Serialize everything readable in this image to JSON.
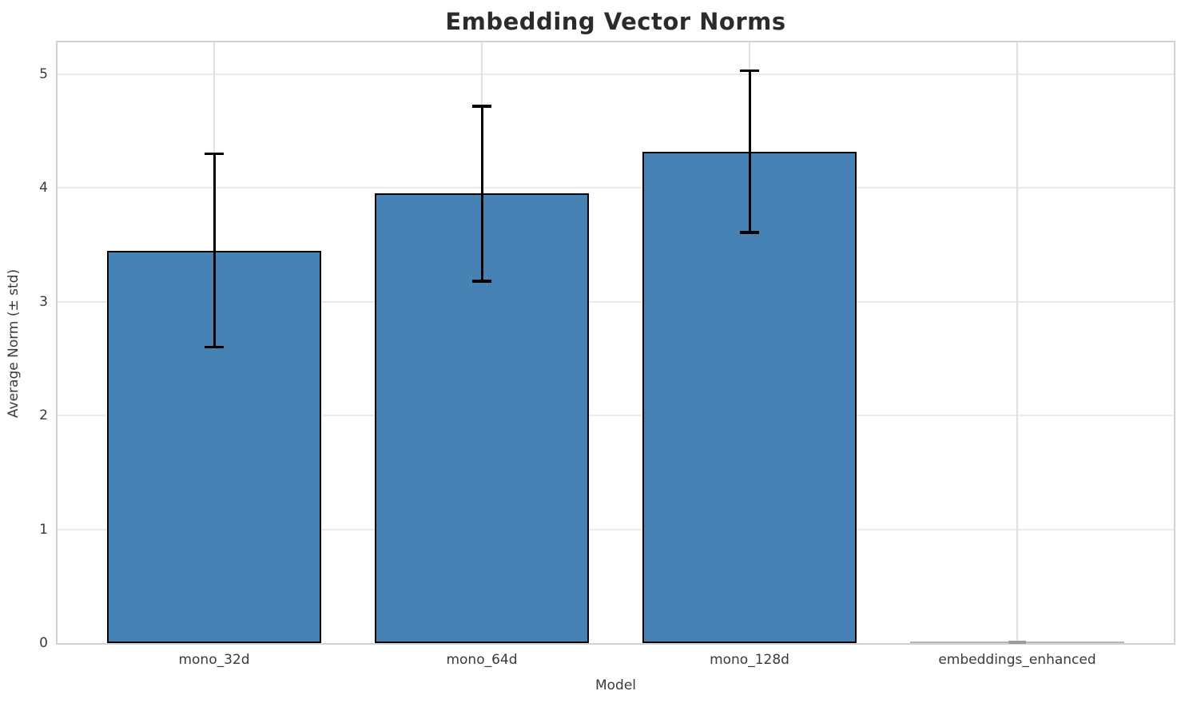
{
  "chart_data": {
    "type": "bar",
    "title": "Embedding Vector Norms",
    "xlabel": "Model",
    "ylabel": "Average Norm (± std)",
    "categories": [
      "mono_32d",
      "mono_64d",
      "mono_128d",
      "embeddings_enhanced"
    ],
    "values": [
      3.45,
      3.95,
      4.32,
      0.0
    ],
    "errors": [
      0.85,
      0.77,
      0.71,
      0.0
    ],
    "yticks": [
      0,
      1,
      2,
      3,
      4,
      5
    ],
    "ylim": [
      0,
      5.28
    ],
    "grid": true,
    "legend": false,
    "bar_color": "#4682b4",
    "bar_edge_color": "#000000",
    "error_color": "#000000",
    "zero_bar_color": "#b5b5b5",
    "grid_color": "#ebebeb",
    "spine_color": "#d2d2d2",
    "title_color": "#2b2b2b",
    "tick_color": "#3a3a3a"
  }
}
